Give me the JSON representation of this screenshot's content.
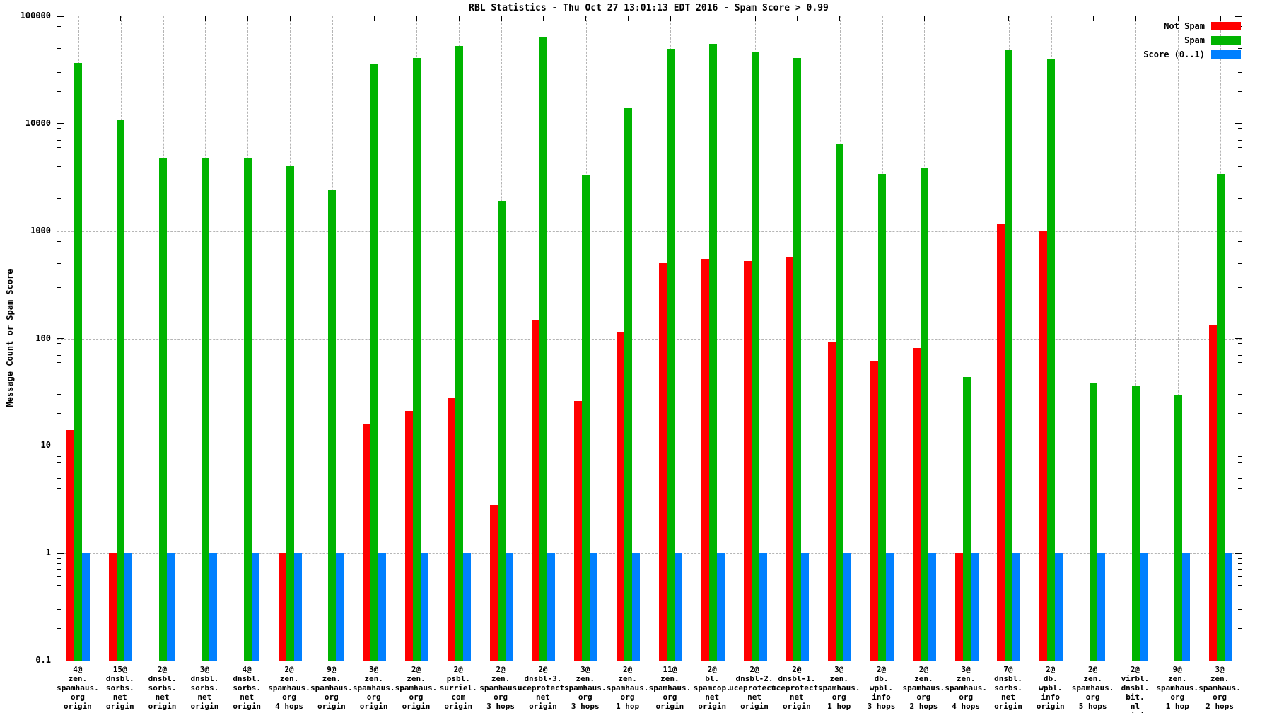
{
  "chart_data": {
    "type": "bar",
    "title": "RBL Statistics - Thu Oct 27 13:01:13 EDT 2016 - Spam Score > 0.99",
    "ylabel": "Message Count or Spam Score",
    "xlabel": "",
    "yscale": "log",
    "ylim": [
      0.1,
      100000
    ],
    "grid": true,
    "legend_position": "top-right",
    "yticks": [
      {
        "label": "0.1",
        "value": 0.1
      },
      {
        "label": "1",
        "value": 1
      },
      {
        "label": "10",
        "value": 10
      },
      {
        "label": "100",
        "value": 100
      },
      {
        "label": "1000",
        "value": 1000
      },
      {
        "label": "10000",
        "value": 10000
      },
      {
        "label": "100000",
        "value": 100000
      }
    ],
    "legend": [
      {
        "name": "Not Spam",
        "color": "#ff0000"
      },
      {
        "name": "Spam",
        "color": "#00b400"
      },
      {
        "name": "Score (0..1)",
        "color": "#0080ff"
      }
    ],
    "categories": [
      [
        "4@",
        "zen.",
        "spamhaus.",
        "org",
        "origin"
      ],
      [
        "15@",
        "dnsbl.",
        "sorbs.",
        "net",
        "origin"
      ],
      [
        "2@",
        "dnsbl.",
        "sorbs.",
        "net",
        "origin"
      ],
      [
        "3@",
        "dnsbl.",
        "sorbs.",
        "net",
        "origin"
      ],
      [
        "4@",
        "dnsbl.",
        "sorbs.",
        "net",
        "origin"
      ],
      [
        "2@",
        "zen.",
        "spamhaus.",
        "org",
        "4 hops"
      ],
      [
        "9@",
        "zen.",
        "spamhaus.",
        "org",
        "origin"
      ],
      [
        "3@",
        "zen.",
        "spamhaus.",
        "org",
        "origin"
      ],
      [
        "2@",
        "zen.",
        "spamhaus.",
        "org",
        "origin"
      ],
      [
        "2@",
        "psbl.",
        "surriel.",
        "com",
        "origin"
      ],
      [
        "2@",
        "zen.",
        "spamhaus.",
        "org",
        "3 hops"
      ],
      [
        "2@",
        "dnsbl-3.",
        "uceprotect.",
        "net",
        "origin"
      ],
      [
        "3@",
        "zen.",
        "spamhaus.",
        "org",
        "3 hops"
      ],
      [
        "2@",
        "zen.",
        "spamhaus.",
        "org",
        "1 hop"
      ],
      [
        "11@",
        "zen.",
        "spamhaus.",
        "org",
        "origin"
      ],
      [
        "2@",
        "bl.",
        "spamcop.",
        "net",
        "origin"
      ],
      [
        "2@",
        "dnsbl-2.",
        "uceprotect.",
        "net",
        "origin"
      ],
      [
        "2@",
        "dnsbl-1.",
        "uceprotect.",
        "net",
        "origin"
      ],
      [
        "3@",
        "zen.",
        "spamhaus.",
        "org",
        "1 hop"
      ],
      [
        "2@",
        "db.",
        "wpbl.",
        "info",
        "3 hops"
      ],
      [
        "2@",
        "zen.",
        "spamhaus.",
        "org",
        "2 hops"
      ],
      [
        "3@",
        "zen.",
        "spamhaus.",
        "org",
        "4 hops"
      ],
      [
        "7@",
        "dnsbl.",
        "sorbs.",
        "net",
        "origin"
      ],
      [
        "2@",
        "db.",
        "wpbl.",
        "info",
        "origin"
      ],
      [
        "2@",
        "zen.",
        "spamhaus.",
        "org",
        "5 hops"
      ],
      [
        "2@",
        "virbl.",
        "dnsbl.",
        "bit.",
        "nl",
        "origin"
      ],
      [
        "9@",
        "zen.",
        "spamhaus.",
        "org",
        "1 hop"
      ],
      [
        "3@",
        "zen.",
        "spamhaus.",
        "org",
        "2 hops"
      ]
    ],
    "series": [
      {
        "name": "Not Spam",
        "color": "#ff0000",
        "values": [
          14,
          1,
          null,
          null,
          null,
          1,
          null,
          16,
          21,
          28,
          2.8,
          150,
          26,
          115,
          500,
          550,
          530,
          580,
          92,
          62,
          82,
          1,
          1150,
          1000,
          null,
          null,
          null,
          135
        ]
      },
      {
        "name": "Spam",
        "color": "#00b400",
        "values": [
          37000,
          11000,
          4800,
          4800,
          4800,
          4000,
          2400,
          36000,
          41000,
          53000,
          1900,
          64000,
          3300,
          14000,
          50000,
          55000,
          46000,
          41000,
          6400,
          3400,
          3900,
          44,
          48000,
          40000,
          38,
          36,
          30,
          3400
        ]
      },
      {
        "name": "Score (0..1)",
        "color": "#0080ff",
        "values": [
          1,
          1,
          1,
          1,
          1,
          1,
          1,
          1,
          1,
          1,
          1,
          1,
          1,
          1,
          1,
          1,
          1,
          1,
          1,
          1,
          1,
          1,
          1,
          1,
          1,
          1,
          1,
          1
        ]
      }
    ]
  }
}
